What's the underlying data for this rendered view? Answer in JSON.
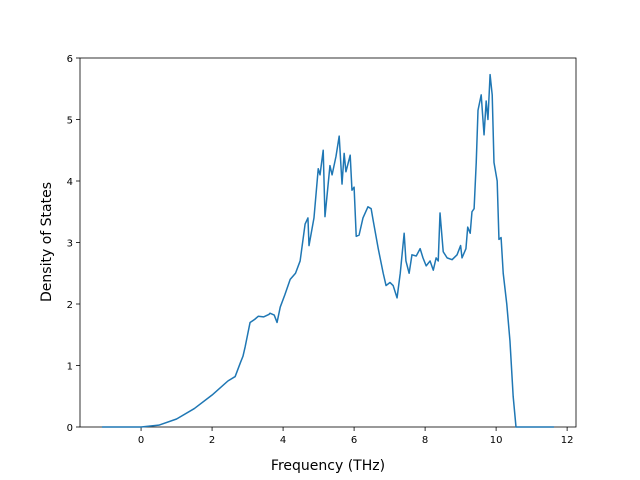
{
  "chart_data": {
    "type": "line",
    "xlabel": "Frequency (THz)",
    "ylabel": "Density of States",
    "xlim": [
      -1.72,
      12.25
    ],
    "ylim": [
      0,
      6
    ],
    "xticks": [
      0,
      2,
      4,
      6,
      8,
      10,
      12
    ],
    "yticks": [
      0,
      1,
      2,
      3,
      4,
      5,
      6
    ],
    "series": [
      {
        "color": "#1f77b4",
        "x": [
          -1.1,
          0,
          0.5,
          1,
          1.5,
          2,
          2.45,
          2.65,
          2.8,
          2.87,
          2.93,
          3.0,
          3.07,
          3.2,
          3.3,
          3.45,
          3.6,
          3.63,
          3.75,
          3.83,
          3.92,
          4.05,
          4.2,
          4.35,
          4.48,
          4.62,
          4.7,
          4.73,
          4.87,
          4.99,
          5.04,
          5.13,
          5.18,
          5.32,
          5.38,
          5.49,
          5.58,
          5.66,
          5.72,
          5.77,
          5.89,
          5.94,
          6.0,
          6.06,
          6.14,
          6.25,
          6.39,
          6.48,
          6.54,
          6.68,
          6.82,
          6.9,
          7.01,
          7.1,
          7.21,
          7.3,
          7.41,
          7.46,
          7.55,
          7.63,
          7.75,
          7.86,
          7.94,
          8.03,
          8.14,
          8.23,
          8.31,
          8.37,
          8.42,
          8.51,
          8.62,
          8.76,
          8.9,
          9.0,
          9.04,
          9.15,
          9.2,
          9.27,
          9.32,
          9.38,
          9.44,
          9.49,
          9.58,
          9.66,
          9.72,
          9.77,
          9.83,
          9.89,
          9.94,
          10.03,
          10.08,
          10.14,
          10.2,
          10.3,
          10.39,
          10.48,
          10.56,
          11.63
        ],
        "values": [
          0,
          0,
          0.03,
          0.13,
          0.3,
          0.52,
          0.75,
          0.82,
          1.05,
          1.15,
          1.3,
          1.5,
          1.7,
          1.75,
          1.8,
          1.79,
          1.83,
          1.85,
          1.82,
          1.7,
          1.95,
          2.15,
          2.4,
          2.5,
          2.7,
          3.3,
          3.4,
          2.95,
          3.4,
          4.2,
          4.1,
          4.5,
          3.42,
          4.25,
          4.1,
          4.4,
          4.73,
          3.95,
          4.45,
          4.15,
          4.42,
          3.85,
          3.9,
          3.1,
          3.12,
          3.4,
          3.58,
          3.55,
          3.35,
          2.9,
          2.5,
          2.3,
          2.35,
          2.3,
          2.1,
          2.5,
          3.15,
          2.7,
          2.5,
          2.8,
          2.78,
          2.9,
          2.75,
          2.62,
          2.7,
          2.55,
          2.75,
          2.7,
          3.48,
          2.85,
          2.75,
          2.72,
          2.8,
          2.95,
          2.75,
          2.9,
          3.25,
          3.15,
          3.5,
          3.55,
          4.3,
          5.15,
          5.4,
          4.75,
          5.3,
          5.0,
          5.73,
          5.4,
          4.3,
          4.0,
          3.05,
          3.08,
          2.5,
          2.0,
          1.4,
          0.5,
          0,
          0
        ]
      }
    ]
  }
}
